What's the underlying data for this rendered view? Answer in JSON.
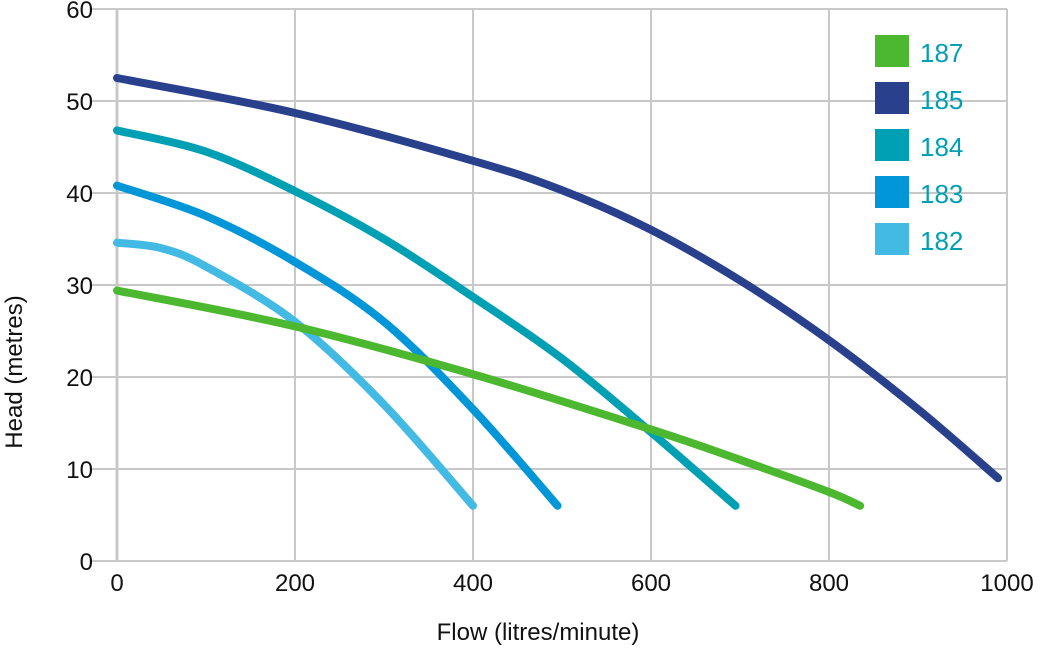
{
  "chart_data": {
    "type": "line",
    "xlabel": "Flow (litres/minute)",
    "ylabel": "Head (metres)",
    "xlim": [
      0,
      1000
    ],
    "ylim": [
      0,
      60
    ],
    "xticks": [
      0,
      200,
      400,
      600,
      800,
      1000
    ],
    "yticks": [
      0,
      10,
      20,
      30,
      40,
      50,
      60
    ],
    "grid": true,
    "legend_position": "top-right",
    "legend_text_color": "#00a0b4",
    "series": [
      {
        "name": "187",
        "color": "#4cb82f",
        "x": [
          0,
          200,
          400,
          600,
          700,
          800,
          835
        ],
        "y": [
          29.4,
          25.5,
          20.3,
          14.3,
          11,
          7.5,
          6
        ]
      },
      {
        "name": "185",
        "color": "#29408c",
        "x": [
          0,
          200,
          400,
          500,
          600,
          700,
          800,
          900,
          990
        ],
        "y": [
          52.5,
          48.7,
          43.5,
          40.3,
          36,
          30.5,
          24,
          16.5,
          9
        ]
      },
      {
        "name": "184",
        "color": "#00a0b4",
        "x": [
          0,
          100,
          200,
          300,
          400,
          500,
          600,
          695
        ],
        "y": [
          46.8,
          44.5,
          40.2,
          35,
          28.7,
          22,
          14,
          6
        ]
      },
      {
        "name": "183",
        "color": "#0096d8",
        "x": [
          0,
          100,
          200,
          300,
          400,
          495
        ],
        "y": [
          40.8,
          37.5,
          32.5,
          26,
          16.5,
          6
        ]
      },
      {
        "name": "182",
        "color": "#42bae4",
        "x": [
          0,
          50,
          100,
          200,
          300,
          400
        ],
        "y": [
          34.6,
          34,
          32,
          26,
          17,
          6
        ]
      }
    ]
  }
}
